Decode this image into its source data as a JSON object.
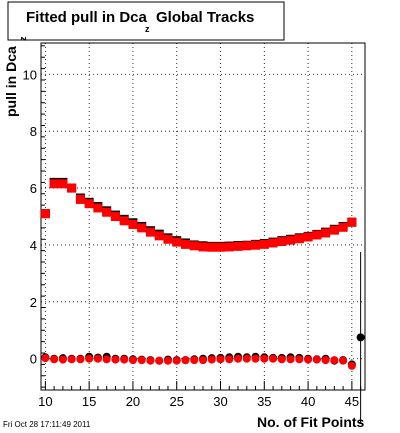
{
  "chart_data": {
    "type": "scatter",
    "title": "Fitted pull in Dca",
    "title_subscript": "z",
    "title_suffix": "Global Tracks",
    "ylabel": "pull in Dca",
    "ylabel_subscript": "z",
    "xlabel": "No. of Fit Points",
    "xlim": [
      9.5,
      46.5
    ],
    "ylim": [
      -1.1,
      11.1
    ],
    "x_ticks": [
      10,
      15,
      20,
      25,
      30,
      35,
      40,
      45
    ],
    "y_ticks": [
      0,
      2,
      4,
      6,
      8,
      10
    ],
    "grid": true,
    "legend": "none",
    "series": [
      {
        "color": "#000000",
        "marker": "square",
        "x": [
          10,
          11,
          12,
          13,
          14,
          15,
          16,
          17,
          18,
          19,
          20,
          21,
          22,
          23,
          24,
          25,
          26,
          27,
          28,
          29,
          30,
          31,
          32,
          33,
          34,
          35,
          36,
          37,
          38,
          39,
          40,
          41,
          42,
          43,
          44,
          45
        ],
        "values": [
          5.1,
          6.2,
          6.2,
          6.0,
          5.65,
          5.5,
          5.35,
          5.2,
          5.05,
          4.9,
          4.78,
          4.65,
          4.5,
          4.38,
          4.25,
          4.15,
          4.07,
          4.0,
          3.97,
          3.95,
          3.95,
          3.96,
          3.98,
          3.99,
          4.02,
          4.05,
          4.1,
          4.15,
          4.2,
          4.25,
          4.3,
          4.37,
          4.45,
          4.55,
          4.65,
          4.8
        ]
      },
      {
        "color": "#ff0000",
        "marker": "square",
        "x": [
          10,
          11,
          12,
          13,
          14,
          15,
          16,
          17,
          18,
          19,
          20,
          21,
          22,
          23,
          24,
          25,
          26,
          27,
          28,
          29,
          30,
          31,
          32,
          33,
          34,
          35,
          36,
          37,
          38,
          39,
          40,
          41,
          42,
          43,
          44,
          45
        ],
        "values": [
          5.1,
          6.15,
          6.15,
          6.0,
          5.6,
          5.45,
          5.3,
          5.15,
          5.0,
          4.85,
          4.72,
          4.6,
          4.45,
          4.32,
          4.2,
          4.1,
          4.02,
          3.97,
          3.93,
          3.92,
          3.92,
          3.93,
          3.95,
          3.97,
          3.99,
          4.02,
          4.07,
          4.12,
          4.17,
          4.22,
          4.28,
          4.35,
          4.42,
          4.52,
          4.62,
          4.8
        ]
      },
      {
        "color": "#000000",
        "marker": "circle",
        "x": [
          10,
          11,
          12,
          13,
          14,
          15,
          16,
          17,
          18,
          19,
          20,
          21,
          22,
          23,
          24,
          25,
          26,
          27,
          28,
          29,
          30,
          31,
          32,
          33,
          34,
          35,
          36,
          37,
          38,
          39,
          40,
          41,
          42,
          43,
          44,
          45,
          46
        ],
        "values": [
          0.05,
          0.0,
          0.02,
          0.0,
          0.0,
          0.07,
          0.04,
          0.07,
          0.0,
          0.0,
          -0.02,
          -0.03,
          -0.05,
          -0.07,
          -0.03,
          -0.05,
          -0.05,
          -0.02,
          0.0,
          0.02,
          0.03,
          0.05,
          0.07,
          0.05,
          0.07,
          0.05,
          0.03,
          0.03,
          0.05,
          0.03,
          0.0,
          -0.02,
          0.0,
          -0.07,
          -0.05,
          -0.2,
          0.75
        ],
        "errors": [
          0,
          0,
          0,
          0,
          0,
          0,
          0,
          0,
          0,
          0,
          0,
          0,
          0,
          0,
          0,
          0,
          0,
          0,
          0,
          0,
          0,
          0,
          0,
          0,
          0,
          0,
          0,
          0,
          0,
          0,
          0,
          0,
          0,
          0,
          0,
          0,
          3.0
        ]
      },
      {
        "color": "#ff0000",
        "marker": "circle",
        "x": [
          10,
          11,
          12,
          13,
          14,
          15,
          16,
          17,
          18,
          19,
          20,
          21,
          22,
          23,
          24,
          25,
          26,
          27,
          28,
          29,
          30,
          31,
          32,
          33,
          34,
          35,
          36,
          37,
          38,
          39,
          40,
          41,
          42,
          43,
          44,
          45
        ],
        "values": [
          0.02,
          -0.02,
          -0.03,
          -0.02,
          -0.02,
          0.0,
          0.0,
          -0.02,
          -0.03,
          -0.03,
          -0.05,
          -0.05,
          -0.07,
          -0.07,
          -0.07,
          -0.07,
          -0.05,
          -0.05,
          -0.05,
          -0.03,
          -0.02,
          -0.02,
          0.0,
          0.0,
          0.0,
          0.0,
          0.0,
          -0.02,
          -0.02,
          -0.02,
          -0.03,
          -0.03,
          -0.05,
          -0.05,
          -0.07,
          -0.25
        ]
      }
    ]
  },
  "footer": {
    "timestamp": "Fri Oct 28 17:11:49 2011"
  }
}
